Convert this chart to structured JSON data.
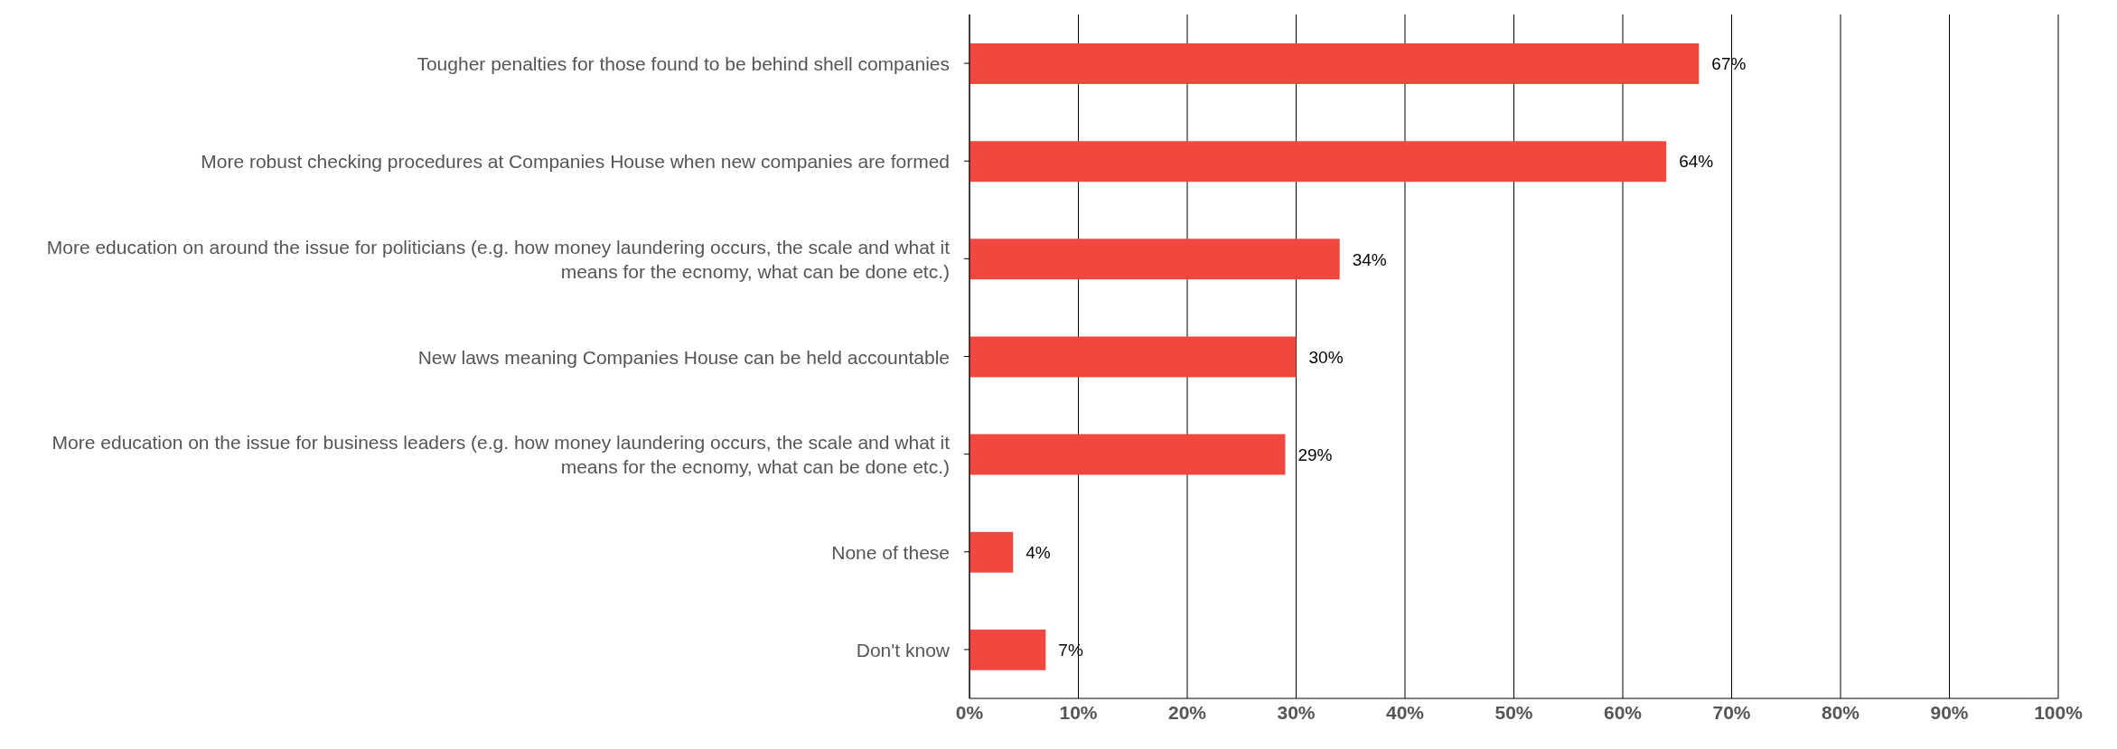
{
  "chart_data": {
    "type": "bar",
    "orientation": "horizontal",
    "categories": [
      "Tougher penalties for those found to be behind shell companies",
      "More robust checking procedures at Companies House when new companies are formed",
      "More education on around the issue for politicians (e.g. how money laundering occurs, the scale and what it means for the ecnomy, what can be done etc.)",
      "New laws meaning Companies House can be held accountable",
      "More education on the issue for business leaders (e.g. how money laundering occurs, the scale and what it means for the ecnomy, what can be done etc.)",
      "None of these",
      "Don't know"
    ],
    "values": [
      67,
      64,
      34,
      30,
      29,
      4,
      7
    ],
    "value_labels": [
      "67%",
      "64%",
      "34%",
      "30%",
      "29%",
      "4%",
      "7%"
    ],
    "color": "#f2473f",
    "xlim": [
      0,
      100
    ],
    "xticks": [
      {
        "value": 0,
        "label": "0%"
      },
      {
        "value": 10,
        "label": "10%"
      },
      {
        "value": 20,
        "label": "20%"
      },
      {
        "value": 30,
        "label": "30%"
      },
      {
        "value": 40,
        "label": "40%"
      },
      {
        "value": 50,
        "label": "50%"
      },
      {
        "value": 60,
        "label": "60%"
      },
      {
        "value": 70,
        "label": "70%"
      },
      {
        "value": 80,
        "label": "80%"
      },
      {
        "value": 90,
        "label": "90%"
      },
      {
        "value": 100,
        "label": "100%"
      }
    ],
    "grid": "x",
    "legend": false
  }
}
